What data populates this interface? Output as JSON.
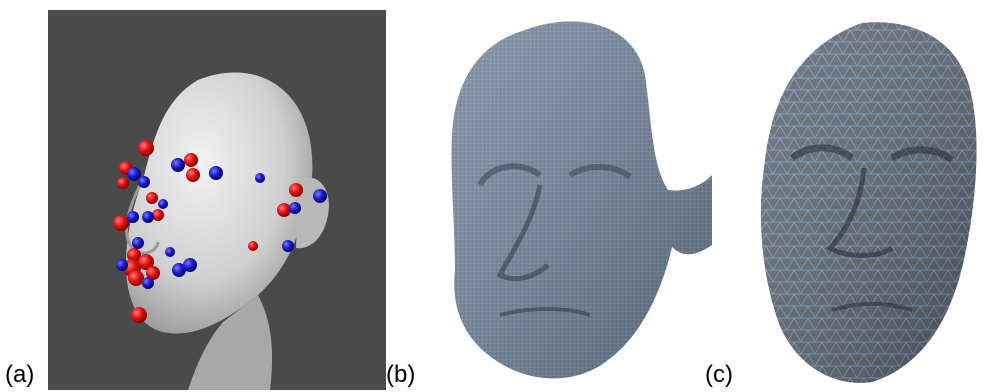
{
  "panels": [
    {
      "label": "(a)",
      "view": "landmark-head"
    },
    {
      "label": "(b)",
      "view": "dense-scan-mesh"
    },
    {
      "label": "(c)",
      "view": "coarse-triangle-mesh"
    }
  ],
  "colors": {
    "panel_a_background": "#4a4a4a",
    "head_skin": "#d9d9d9",
    "landmark_red": "#e01010",
    "landmark_blue": "#1a1acc",
    "mesh_face": "#6f7f92",
    "mesh_edge": "#8fb6e3",
    "coarse_face": "#5f6670",
    "coarse_edge": "#7fa9d6"
  }
}
